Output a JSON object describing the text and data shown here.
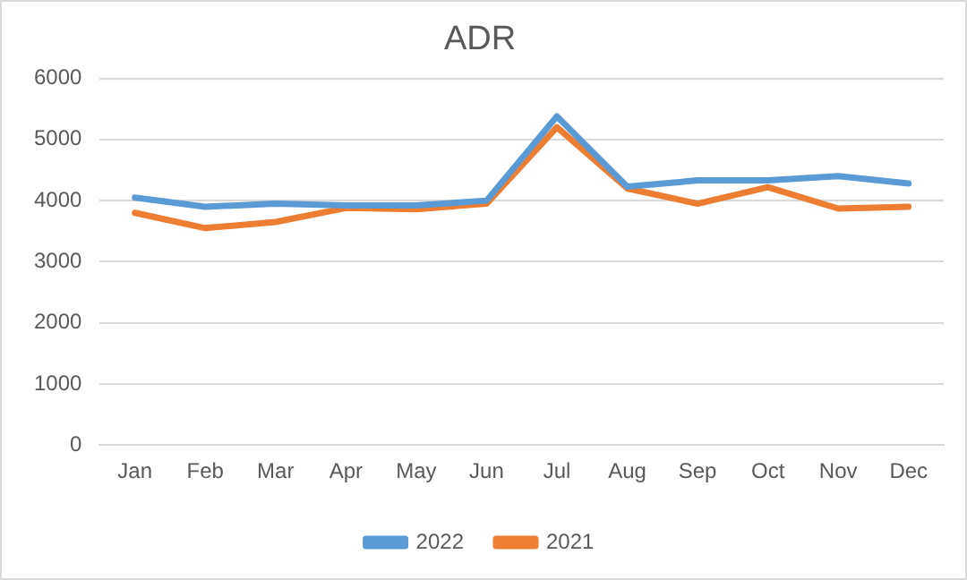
{
  "chart_data": {
    "type": "line",
    "title": "ADR",
    "categories": [
      "Jan",
      "Feb",
      "Mar",
      "Apr",
      "May",
      "Jun",
      "Jul",
      "Aug",
      "Sep",
      "Oct",
      "Nov",
      "Dec"
    ],
    "series": [
      {
        "name": "2022",
        "color": "#5b9bd5",
        "values": [
          4050,
          3900,
          3950,
          3920,
          3920,
          4000,
          5380,
          4230,
          4330,
          4330,
          4400,
          4280
        ]
      },
      {
        "name": "2021",
        "color": "#ed7d31",
        "values": [
          3800,
          3550,
          3650,
          3880,
          3860,
          3950,
          5200,
          4200,
          3950,
          4220,
          3870,
          3900
        ]
      }
    ],
    "ylim": [
      0,
      6000
    ],
    "yticks": [
      0,
      1000,
      2000,
      3000,
      4000,
      5000,
      6000
    ],
    "grid": "y",
    "legend": "bottom",
    "marker": "none",
    "line_style": "solid"
  }
}
